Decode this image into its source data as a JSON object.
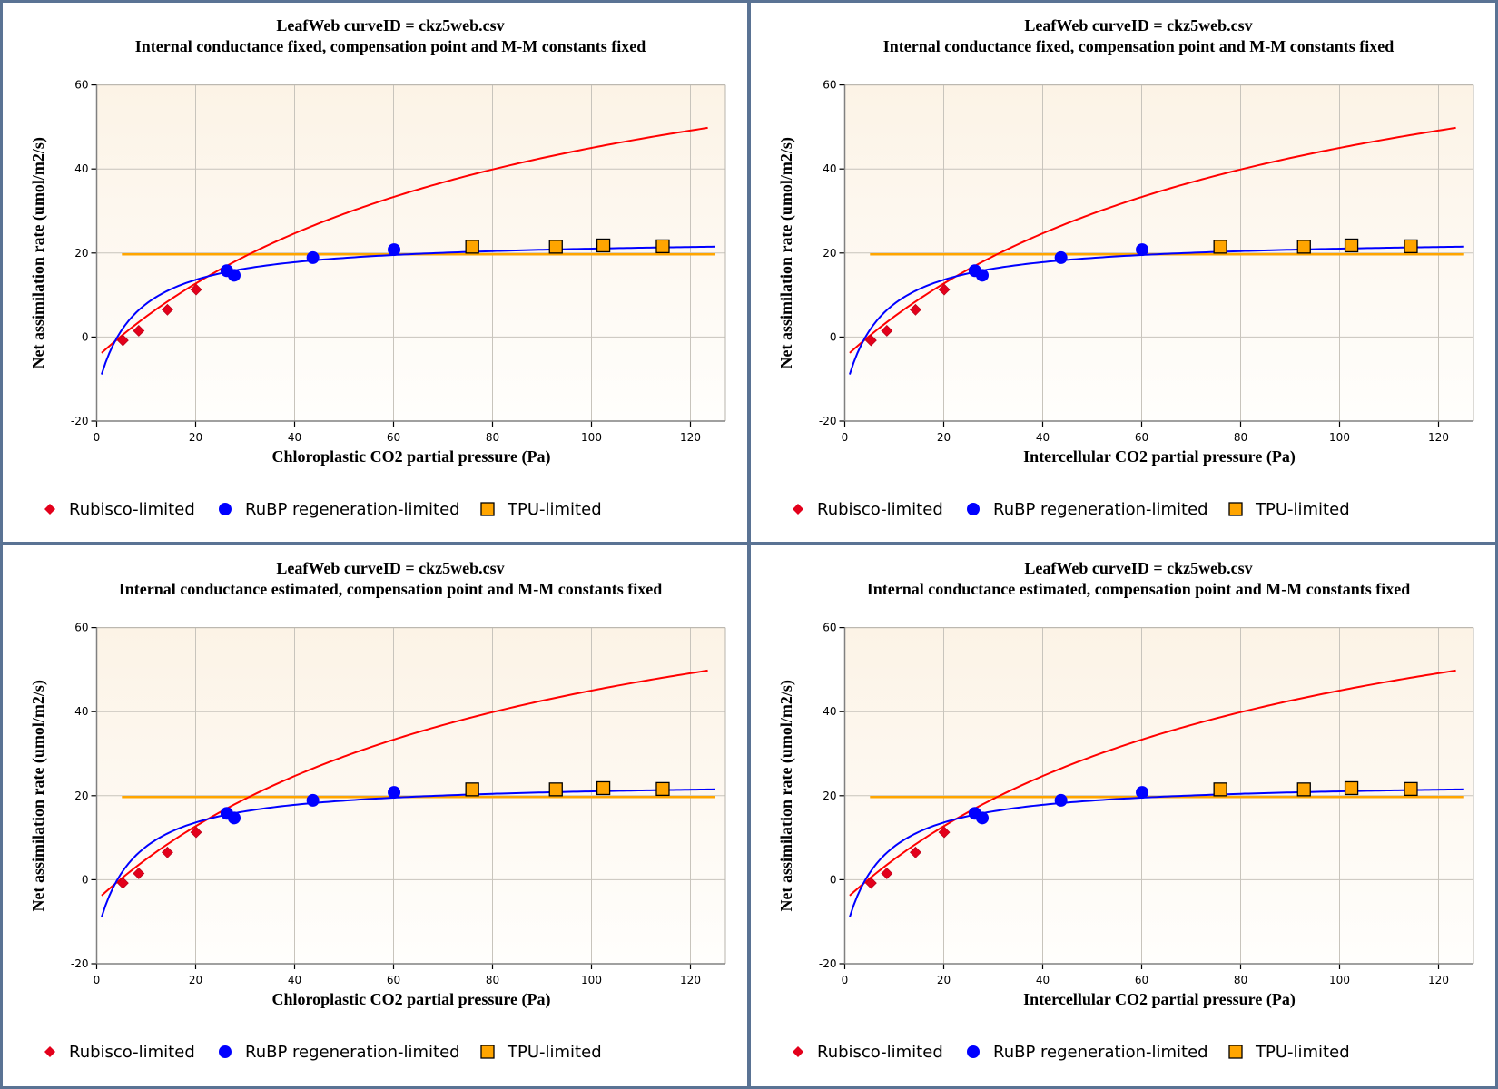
{
  "colors": {
    "rubisco": "#ff0000",
    "rubisco_marker": "#e3001b",
    "rubp": "#0000ff",
    "tpu_line": "#ffa500",
    "tpu_marker": "#ffa500",
    "border": "#5a7394",
    "grid": "#c8c4bc",
    "plot_bg_top": "#fcf3e6",
    "plot_bg_bottom": "#fffefc"
  },
  "legend": {
    "items": [
      {
        "label": "Rubisco-limited",
        "marker": "diamond-icon"
      },
      {
        "label": "RuBP regeneration-limited",
        "marker": "circle-icon"
      },
      {
        "label": "TPU-limited",
        "marker": "square-icon"
      }
    ]
  },
  "chart_data": [
    {
      "type": "scatter",
      "title": "LeafWeb curveID = ckz5web.csv",
      "subtitle": "Internal conductance fixed, compensation point and M-M constants fixed",
      "xlabel": "Chloroplastic CO2 partial pressure (Pa)",
      "ylabel": "Net assimilation rate (umol/m2/s)",
      "xlim": [
        0,
        127
      ],
      "ylim": [
        -20,
        60
      ],
      "xticks": [
        0,
        20,
        40,
        60,
        80,
        100,
        120
      ],
      "yticks": [
        -20,
        0,
        20,
        40,
        60
      ],
      "grid": true,
      "legend_position": "bottom",
      "series": [
        {
          "name": "Rubisco-limited",
          "kind": "points",
          "marker": "diamond",
          "x": [
            5.3,
            8.5,
            14.3,
            20.1
          ],
          "y": [
            -0.8,
            1.5,
            6.5,
            11.3
          ]
        },
        {
          "name": "RuBP regeneration-limited",
          "kind": "points",
          "marker": "circle",
          "x": [
            26.3,
            27.8,
            43.7,
            60.1
          ],
          "y": [
            15.8,
            14.7,
            18.9,
            20.8
          ]
        },
        {
          "name": "TPU-limited",
          "kind": "points",
          "marker": "square",
          "x": [
            75.9,
            92.8,
            102.4,
            114.4
          ],
          "y": [
            21.5,
            21.5,
            21.8,
            21.6
          ]
        },
        {
          "name": "Rubisco-limited fit",
          "kind": "curve",
          "model": "rubisco",
          "x_range": [
            1,
            123.5
          ],
          "params": {
            "V": 88.3,
            "K": 84.8,
            "gamma": 3.7,
            "Rd": 1.0
          }
        },
        {
          "name": "RuBP regeneration-limited fit",
          "kind": "curve",
          "model": "rubp",
          "x_range": [
            1,
            125
          ],
          "params": {
            "J": 98.3,
            "gamma": 3.7,
            "Rd": 1.0
          }
        },
        {
          "name": "TPU-limited fit",
          "kind": "curve",
          "model": "constant",
          "x_range": [
            5.1,
            125
          ],
          "params": {
            "value": 19.7
          }
        }
      ]
    },
    {
      "type": "scatter",
      "title": "LeafWeb curveID = ckz5web.csv",
      "subtitle": "Internal conductance fixed, compensation point and M-M constants fixed",
      "xlabel": "Intercellular CO2 partial pressure (Pa)",
      "ylabel": "Net assimilation rate (umol/m2/s)",
      "xlim": [
        0,
        127
      ],
      "ylim": [
        -20,
        60
      ],
      "xticks": [
        0,
        20,
        40,
        60,
        80,
        100,
        120
      ],
      "yticks": [
        -20,
        0,
        20,
        40,
        60
      ],
      "grid": true,
      "legend_position": "bottom",
      "series": [
        {
          "name": "Rubisco-limited",
          "kind": "points",
          "marker": "diamond",
          "x": [
            5.3,
            8.5,
            14.3,
            20.1
          ],
          "y": [
            -0.8,
            1.5,
            6.5,
            11.3
          ]
        },
        {
          "name": "RuBP regeneration-limited",
          "kind": "points",
          "marker": "circle",
          "x": [
            26.3,
            27.8,
            43.7,
            60.1
          ],
          "y": [
            15.8,
            14.7,
            18.9,
            20.8
          ]
        },
        {
          "name": "TPU-limited",
          "kind": "points",
          "marker": "square",
          "x": [
            75.9,
            92.8,
            102.4,
            114.4
          ],
          "y": [
            21.5,
            21.5,
            21.8,
            21.6
          ]
        },
        {
          "name": "Rubisco-limited fit",
          "kind": "curve",
          "model": "rubisco",
          "x_range": [
            1,
            123.5
          ],
          "params": {
            "V": 88.3,
            "K": 84.8,
            "gamma": 3.7,
            "Rd": 1.0
          }
        },
        {
          "name": "RuBP regeneration-limited fit",
          "kind": "curve",
          "model": "rubp",
          "x_range": [
            1,
            125
          ],
          "params": {
            "J": 98.3,
            "gamma": 3.7,
            "Rd": 1.0
          }
        },
        {
          "name": "TPU-limited fit",
          "kind": "curve",
          "model": "constant",
          "x_range": [
            5.1,
            125
          ],
          "params": {
            "value": 19.7
          }
        }
      ]
    },
    {
      "type": "scatter",
      "title": "LeafWeb curveID = ckz5web.csv",
      "subtitle": "Internal conductance estimated, compensation point and M-M constants fixed",
      "xlabel": "Chloroplastic CO2 partial pressure (Pa)",
      "ylabel": "Net assimilation rate (umol/m2/s)",
      "xlim": [
        0,
        127
      ],
      "ylim": [
        -20,
        60
      ],
      "xticks": [
        0,
        20,
        40,
        60,
        80,
        100,
        120
      ],
      "yticks": [
        -20,
        0,
        20,
        40,
        60
      ],
      "grid": true,
      "legend_position": "bottom",
      "series": [
        {
          "name": "Rubisco-limited",
          "kind": "points",
          "marker": "diamond",
          "x": [
            5.3,
            8.5,
            14.3,
            20.1
          ],
          "y": [
            -0.8,
            1.5,
            6.5,
            11.3
          ]
        },
        {
          "name": "RuBP regeneration-limited",
          "kind": "points",
          "marker": "circle",
          "x": [
            26.3,
            27.8,
            43.7,
            60.1
          ],
          "y": [
            15.8,
            14.7,
            18.9,
            20.8
          ]
        },
        {
          "name": "TPU-limited",
          "kind": "points",
          "marker": "square",
          "x": [
            75.9,
            92.8,
            102.4,
            114.4
          ],
          "y": [
            21.5,
            21.5,
            21.8,
            21.6
          ]
        },
        {
          "name": "Rubisco-limited fit",
          "kind": "curve",
          "model": "rubisco",
          "x_range": [
            1,
            123.5
          ],
          "params": {
            "V": 88.3,
            "K": 84.8,
            "gamma": 3.7,
            "Rd": 1.0
          }
        },
        {
          "name": "RuBP regeneration-limited fit",
          "kind": "curve",
          "model": "rubp",
          "x_range": [
            1,
            125
          ],
          "params": {
            "J": 98.3,
            "gamma": 3.7,
            "Rd": 1.0
          }
        },
        {
          "name": "TPU-limited fit",
          "kind": "curve",
          "model": "constant",
          "x_range": [
            5.1,
            125
          ],
          "params": {
            "value": 19.7
          }
        }
      ]
    },
    {
      "type": "scatter",
      "title": "LeafWeb curveID = ckz5web.csv",
      "subtitle": "Internal conductance estimated, compensation point and M-M constants fixed",
      "xlabel": "Intercellular CO2 partial pressure (Pa)",
      "ylabel": "Net assimilation rate (umol/m2/s)",
      "xlim": [
        0,
        127
      ],
      "ylim": [
        -20,
        60
      ],
      "xticks": [
        0,
        20,
        40,
        60,
        80,
        100,
        120
      ],
      "yticks": [
        -20,
        0,
        20,
        40,
        60
      ],
      "grid": true,
      "legend_position": "bottom",
      "series": [
        {
          "name": "Rubisco-limited",
          "kind": "points",
          "marker": "diamond",
          "x": [
            5.3,
            8.5,
            14.3,
            20.1
          ],
          "y": [
            -0.8,
            1.5,
            6.5,
            11.3
          ]
        },
        {
          "name": "RuBP regeneration-limited",
          "kind": "points",
          "marker": "circle",
          "x": [
            26.3,
            27.8,
            43.7,
            60.1
          ],
          "y": [
            15.8,
            14.7,
            18.9,
            20.8
          ]
        },
        {
          "name": "TPU-limited",
          "kind": "points",
          "marker": "square",
          "x": [
            75.9,
            92.8,
            102.4,
            114.4
          ],
          "y": [
            21.5,
            21.5,
            21.8,
            21.6
          ]
        },
        {
          "name": "Rubisco-limited fit",
          "kind": "curve",
          "model": "rubisco",
          "x_range": [
            1,
            123.5
          ],
          "params": {
            "V": 88.3,
            "K": 84.8,
            "gamma": 3.7,
            "Rd": 1.0
          }
        },
        {
          "name": "RuBP regeneration-limited fit",
          "kind": "curve",
          "model": "rubp",
          "x_range": [
            1,
            125
          ],
          "params": {
            "J": 98.3,
            "gamma": 3.7,
            "Rd": 1.0
          }
        },
        {
          "name": "TPU-limited fit",
          "kind": "curve",
          "model": "constant",
          "x_range": [
            5.1,
            125
          ],
          "params": {
            "value": 19.7
          }
        }
      ]
    }
  ]
}
